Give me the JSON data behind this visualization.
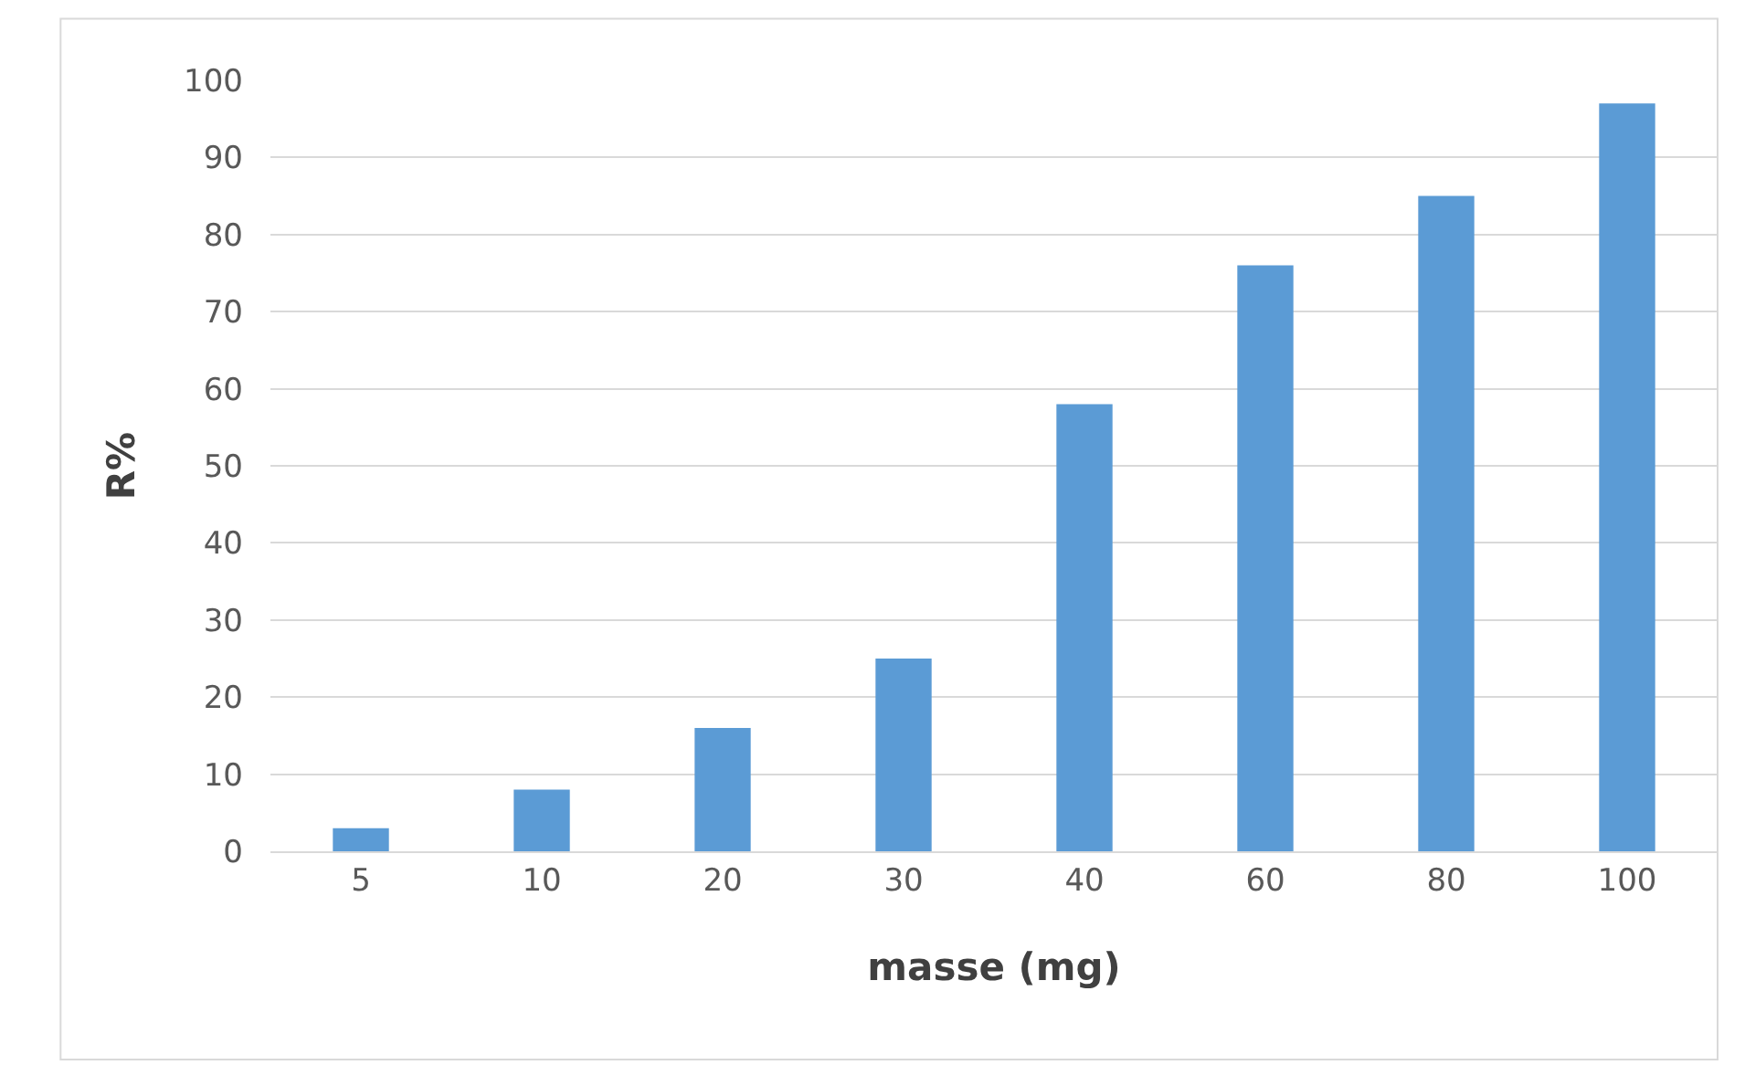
{
  "chart_data": {
    "type": "bar",
    "xlabel": "masse (mg)",
    "ylabel": "R%",
    "categories": [
      "5",
      "10",
      "20",
      "30",
      "40",
      "60",
      "80",
      "100"
    ],
    "values": [
      3,
      8,
      16,
      25,
      58,
      76,
      85,
      97
    ],
    "color": "#5b9bd5",
    "ylim": [
      0,
      100
    ],
    "yticks": [
      0,
      10,
      20,
      30,
      40,
      50,
      60,
      70,
      80,
      90,
      100
    ],
    "grid": "y"
  }
}
